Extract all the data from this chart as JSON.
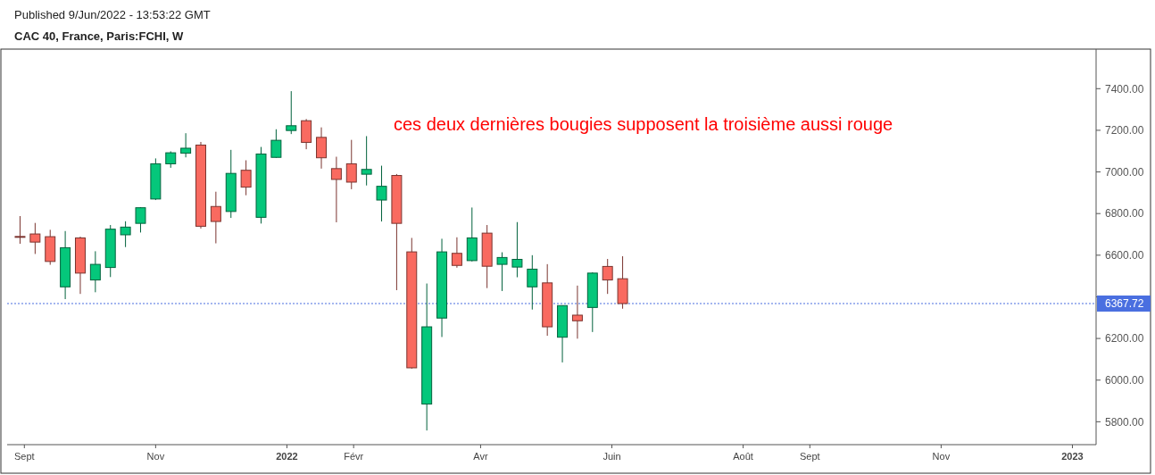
{
  "chart_data": {
    "type": "candlestick",
    "title": "CAC 40, France, Paris:FCHI, W",
    "annotations": [
      "Published 9/Jun/2022 - 13:53:22 GMT",
      "ces deux dernières bougies supposent la troisième aussi rouge"
    ],
    "x": [
      "2021-08-30",
      "2021-09-06",
      "2021-09-13",
      "2021-09-20",
      "2021-09-27",
      "2021-10-04",
      "2021-10-11",
      "2021-10-18",
      "2021-10-25",
      "2021-11-01",
      "2021-11-08",
      "2021-11-15",
      "2021-11-22",
      "2021-11-29",
      "2021-12-06",
      "2021-12-13",
      "2021-12-20",
      "2021-12-27",
      "2022-01-03",
      "2022-01-10",
      "2022-01-17",
      "2022-01-24",
      "2022-01-31",
      "2022-02-07",
      "2022-02-14",
      "2022-02-21",
      "2022-02-28",
      "2022-03-07",
      "2022-03-14",
      "2022-03-21",
      "2022-03-28",
      "2022-04-04",
      "2022-04-11",
      "2022-04-18",
      "2022-04-25",
      "2022-05-02",
      "2022-05-09",
      "2022-05-16",
      "2022-05-23",
      "2022-05-30",
      "2022-06-06"
    ],
    "ohlc": [
      [
        6690,
        6788,
        6655,
        6687
      ],
      [
        6702,
        6755,
        6606,
        6663
      ],
      [
        6689,
        6722,
        6554,
        6570
      ],
      [
        6448,
        6716,
        6389,
        6636
      ],
      [
        6683,
        6689,
        6414,
        6514
      ],
      [
        6481,
        6619,
        6422,
        6556
      ],
      [
        6541,
        6745,
        6495,
        6725
      ],
      [
        6698,
        6763,
        6639,
        6735
      ],
      [
        6753,
        6831,
        6709,
        6828
      ],
      [
        6870,
        7065,
        6865,
        7039
      ],
      [
        7039,
        7099,
        7020,
        7092
      ],
      [
        7090,
        7186,
        7070,
        7114
      ],
      [
        7129,
        7144,
        6728,
        6739
      ],
      [
        6834,
        6905,
        6657,
        6762
      ],
      [
        6810,
        7106,
        6779,
        6993
      ],
      [
        7008,
        7056,
        6888,
        6927
      ],
      [
        6782,
        7120,
        6752,
        7086
      ],
      [
        7070,
        7205,
        7068,
        7152
      ],
      [
        7199,
        7388,
        7182,
        7222
      ],
      [
        7246,
        7254,
        7109,
        7142
      ],
      [
        7166,
        7214,
        7016,
        7068
      ],
      [
        7016,
        7073,
        6758,
        6964
      ],
      [
        7039,
        7154,
        6917,
        6951
      ],
      [
        6989,
        7172,
        6935,
        7012
      ],
      [
        6865,
        7030,
        6762,
        6931
      ],
      [
        6983,
        6990,
        6432,
        6753
      ],
      [
        6616,
        6683,
        6055,
        6059
      ],
      [
        5885,
        6464,
        5758,
        6256
      ],
      [
        6298,
        6679,
        6207,
        6616
      ],
      [
        6609,
        6686,
        6540,
        6551
      ],
      [
        6574,
        6829,
        6570,
        6683
      ],
      [
        6706,
        6745,
        6442,
        6547
      ],
      [
        6556,
        6614,
        6428,
        6589
      ],
      [
        6543,
        6759,
        6494,
        6580
      ],
      [
        6448,
        6600,
        6339,
        6533
      ],
      [
        6467,
        6557,
        6213,
        6256
      ],
      [
        6206,
        6358,
        6085,
        6358
      ],
      [
        6312,
        6454,
        6199,
        6285
      ],
      [
        6349,
        6518,
        6231,
        6514
      ],
      [
        6546,
        6582,
        6414,
        6481
      ],
      [
        6487,
        6595,
        6343,
        6367.72
      ]
    ],
    "colors": [
      "#f96a60",
      "#f96a60",
      "#f96a60",
      "#05c77b",
      "#f96a60",
      "#05c77b",
      "#05c77b",
      "#05c77b",
      "#05c77b",
      "#05c77b",
      "#05c77b",
      "#05c77b",
      "#f96a60",
      "#f96a60",
      "#05c77b",
      "#f96a60",
      "#05c77b",
      "#05c77b",
      "#05c77b",
      "#f96a60",
      "#f96a60",
      "#f96a60",
      "#f96a60",
      "#05c77b",
      "#05c77b",
      "#f96a60",
      "#f96a60",
      "#05c77b",
      "#05c77b",
      "#f96a60",
      "#05c77b",
      "#f96a60",
      "#05c77b",
      "#05c77b",
      "#05c77b",
      "#f96a60",
      "#05c77b",
      "#f96a60",
      "#05c77b",
      "#f96a60",
      "#f96a60"
    ],
    "xlim": [
      "2021-08-24",
      "2023-01-12"
    ],
    "xticks": [
      {
        "value": "2021-09-01",
        "label": "Sept"
      },
      {
        "value": "2021-11-01",
        "label": "Nov"
      },
      {
        "value": "2022-01-01",
        "label": "2022"
      },
      {
        "value": "2022-02-01",
        "label": "Févr"
      },
      {
        "value": "2022-04-01",
        "label": "Avr"
      },
      {
        "value": "2022-06-01",
        "label": "Juin"
      },
      {
        "value": "2022-08-01",
        "label": "Août"
      },
      {
        "value": "2022-09-01",
        "label": "Sept"
      },
      {
        "value": "2022-11-01",
        "label": "Nov"
      },
      {
        "value": "2023-01-01",
        "label": "2023"
      }
    ],
    "ylim": [
      5690,
      7590
    ],
    "yticks": [
      {
        "value": 5800,
        "label": "5800.00"
      },
      {
        "value": 6000,
        "label": "6000.00"
      },
      {
        "value": 6200,
        "label": "6200.00"
      },
      {
        "value": 6400,
        "label": null
      },
      {
        "value": 6600,
        "label": "6600.00"
      },
      {
        "value": 6800,
        "label": "6800.00"
      },
      {
        "value": 7000,
        "label": "7000.00"
      },
      {
        "value": 7200,
        "label": "7200.00"
      },
      {
        "value": 7400,
        "label": "7400.00"
      }
    ],
    "ref_lines": [
      {
        "axis": "y",
        "value": 6367.72,
        "label": "6367.72",
        "color": "#4a6fe0",
        "line_style": "dotted"
      }
    ],
    "grid": false
  }
}
